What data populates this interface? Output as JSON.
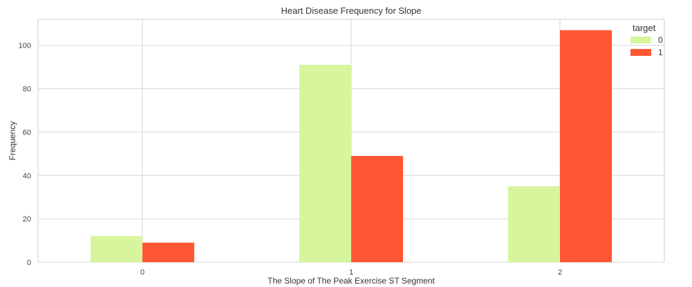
{
  "chart_data": {
    "type": "bar",
    "title": "Heart Disease Frequency for Slope",
    "xlabel": "The Slope of The Peak Exercise ST Segment",
    "ylabel": "Frequency",
    "categories": [
      "0",
      "1",
      "2"
    ],
    "series": [
      {
        "name": "0",
        "values": [
          12,
          91,
          35
        ],
        "color": "#d7f59c"
      },
      {
        "name": "1",
        "values": [
          9,
          49,
          107
        ],
        "color": "#ff5733"
      }
    ],
    "ylim": [
      0,
      112
    ],
    "yticks": [
      0,
      20,
      40,
      60,
      80,
      100
    ],
    "grid": true,
    "legend": {
      "title": "target",
      "placement": "top-right"
    }
  }
}
